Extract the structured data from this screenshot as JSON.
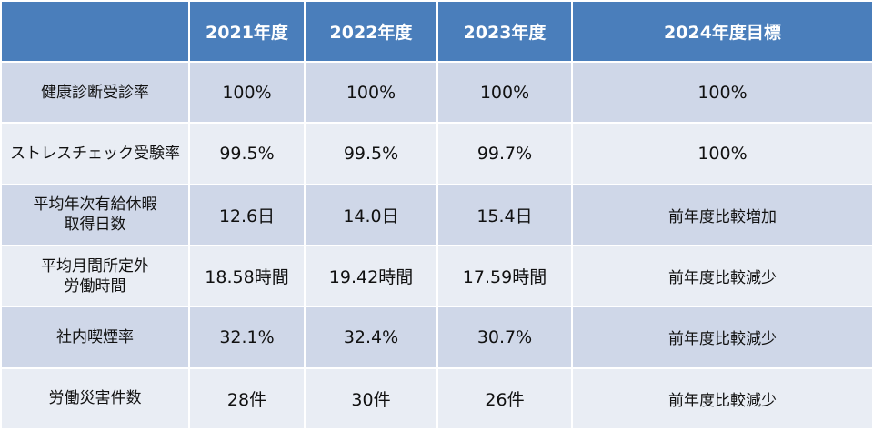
{
  "header": {
    "corner": "",
    "years": [
      "2021年度",
      "2022年度",
      "2023年度"
    ],
    "goal": "2024年度目標"
  },
  "rows": [
    {
      "label": [
        "健康診断受診率"
      ],
      "values": [
        "100%",
        "100%",
        "100%"
      ],
      "goal": "100%"
    },
    {
      "label": [
        "ストレスチェック受験率"
      ],
      "values": [
        "99.5%",
        "99.5%",
        "99.7%"
      ],
      "goal": "100%"
    },
    {
      "label": [
        "平均年次有給休暇",
        "取得日数"
      ],
      "values": [
        "12.6日",
        "14.0日",
        "15.4日"
      ],
      "goal": "前年度比較増加"
    },
    {
      "label": [
        "平均月間所定外",
        "労働時間"
      ],
      "values": [
        "18.58時間",
        "19.42時間",
        "17.59時間"
      ],
      "goal": "前年度比較減少"
    },
    {
      "label": [
        "社内喫煙率"
      ],
      "values": [
        "32.1%",
        "32.4%",
        "30.7%"
      ],
      "goal": "前年度比較減少"
    },
    {
      "label": [
        "労働災害件数"
      ],
      "values": [
        "28件",
        "30件",
        "26件"
      ],
      "goal": "前年度比較減少"
    }
  ],
  "colors": {
    "header_bg": "#4a7ebb",
    "row_dark": "#cfd7e8",
    "row_light": "#e9edf4"
  }
}
